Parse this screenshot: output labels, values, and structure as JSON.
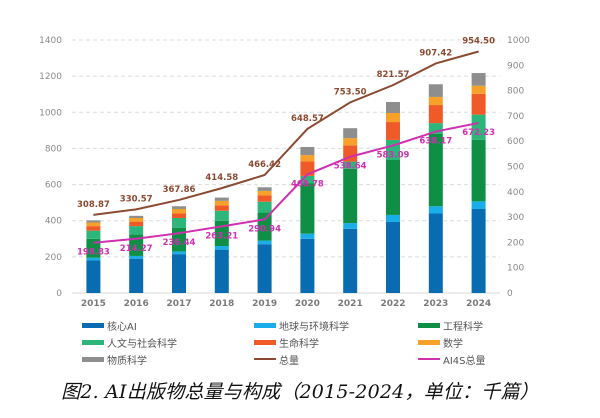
{
  "caption": "图2. AI出版物总量与构成（2015-2024，单位：千篇）",
  "chart_data": {
    "type": "bar",
    "stacked": true,
    "title": "AI出版物总量与构成（2015-2024，单位：千篇）",
    "categories": [
      "2015",
      "2016",
      "2017",
      "2018",
      "2019",
      "2020",
      "2021",
      "2022",
      "2023",
      "2024"
    ],
    "left_axis": {
      "range": [
        0,
        1400
      ],
      "ticks": [
        "0",
        "200",
        "400",
        "600",
        "800",
        "1000",
        "1200",
        "1400"
      ]
    },
    "right_axis": {
      "range": [
        0,
        1000
      ],
      "ticks": [
        "0",
        "100",
        "200",
        "300",
        "400",
        "500",
        "600",
        "700",
        "800",
        "900",
        "1000"
      ]
    },
    "grid": true,
    "legend_position": "bottom",
    "series": [
      {
        "name": "核心AI",
        "axis": "left",
        "color": "#0a6cb0",
        "values": [
          180,
          190,
          215,
          240,
          270,
          300,
          355,
          393,
          440,
          465
        ]
      },
      {
        "name": "地球与环境科学",
        "axis": "left",
        "color": "#1aaee8",
        "values": [
          15,
          15,
          15,
          20,
          20,
          28,
          32,
          39,
          40,
          42
        ]
      },
      {
        "name": "工程科学",
        "axis": "left",
        "color": "#0e8f45",
        "values": [
          105,
          120,
          130,
          140,
          155,
          280,
          300,
          304,
          400,
          340
        ]
      },
      {
        "name": "人文与社会科学",
        "axis": "left",
        "color": "#2db67a",
        "values": [
          45,
          45,
          55,
          55,
          60,
          40,
          40,
          111,
          60,
          140
        ]
      },
      {
        "name": "生命科学",
        "axis": "left",
        "color": "#f05a28",
        "values": [
          25,
          25,
          25,
          30,
          35,
          80,
          90,
          99,
          100,
          115
        ]
      },
      {
        "name": "数学",
        "axis": "left",
        "color": "#f7a12a",
        "values": [
          20,
          20,
          25,
          25,
          25,
          35,
          40,
          50,
          45,
          45
        ]
      },
      {
        "name": "物质科学",
        "axis": "left",
        "color": "#8e8e8e",
        "values": [
          12,
          12,
          15,
          18,
          20,
          45,
          55,
          61,
          70,
          70
        ]
      },
      {
        "name": "总量",
        "type": "line",
        "axis": "right",
        "color": "#8b4a32",
        "values": [
          308.87,
          330.57,
          367.86,
          414.58,
          466.42,
          648.57,
          753.5,
          821.57,
          907.42,
          954.5
        ],
        "labels": [
          "308.87",
          "330.57",
          "367.86",
          "414.58",
          "466.42",
          "648.57",
          "753.50",
          "821.57",
          "907.42",
          "954.50"
        ]
      },
      {
        "name": "AI4S总量",
        "type": "line",
        "axis": "right",
        "color": "#d02fb0",
        "values": [
          198.83,
          214.27,
          236.44,
          263.21,
          290.94,
          468.78,
          538.64,
          583.09,
          638.17,
          672.23
        ],
        "labels": [
          "198.83",
          "214.27",
          "236.44",
          "263.21",
          "290.94",
          "468.78",
          "538.64",
          "583.09",
          "638.17",
          "672.23"
        ]
      }
    ]
  },
  "legend": [
    {
      "label": "核心AI",
      "color": "#0a6cb0",
      "kind": "bar"
    },
    {
      "label": "地球与环境科学",
      "color": "#1aaee8",
      "kind": "bar"
    },
    {
      "label": "工程科学",
      "color": "#0e8f45",
      "kind": "bar"
    },
    {
      "label": "人文与社会科学",
      "color": "#2db67a",
      "kind": "bar"
    },
    {
      "label": "生命科学",
      "color": "#f05a28",
      "kind": "bar"
    },
    {
      "label": "数学",
      "color": "#f7a12a",
      "kind": "bar"
    },
    {
      "label": "物质科学",
      "color": "#8e8e8e",
      "kind": "bar"
    },
    {
      "label": "总量",
      "color": "#8b4a32",
      "kind": "line"
    },
    {
      "label": "AI4S总量",
      "color": "#d02fb0",
      "kind": "line"
    }
  ]
}
